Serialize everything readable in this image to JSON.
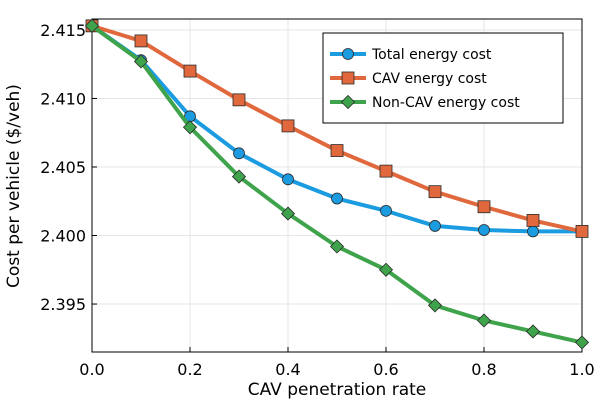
{
  "chart_data": {
    "type": "line",
    "title": "",
    "xlabel": "CAV penetration rate",
    "ylabel": "Cost per vehicle ($/veh)",
    "xlim": [
      0.0,
      1.0
    ],
    "ylim": [
      2.3915,
      2.4158
    ],
    "x_ticks": [
      0.0,
      0.2,
      0.4,
      0.6,
      0.8,
      1.0
    ],
    "x_tick_labels": [
      "0.0",
      "0.2",
      "0.4",
      "0.6",
      "0.8",
      "1.0"
    ],
    "y_ticks": [
      2.395,
      2.4,
      2.405,
      2.41,
      2.415
    ],
    "y_tick_labels": [
      "2.395",
      "2.400",
      "2.405",
      "2.410",
      "2.415"
    ],
    "grid": true,
    "legend_position": "top-right",
    "x": [
      0.0,
      0.1,
      0.2,
      0.3,
      0.4,
      0.5,
      0.6,
      0.7,
      0.8,
      0.9,
      1.0
    ],
    "series": [
      {
        "name": "Total energy cost",
        "color": "#1b9be0",
        "marker": "circle",
        "values": [
          2.4153,
          2.4128,
          2.4087,
          2.406,
          2.4041,
          2.4027,
          2.4018,
          2.4007,
          2.4004,
          2.4003,
          2.4003
        ]
      },
      {
        "name": "CAV energy cost",
        "color": "#e0683c",
        "marker": "square",
        "values": [
          2.4153,
          2.4142,
          2.412,
          2.4099,
          2.408,
          2.4062,
          2.4047,
          2.4032,
          2.4021,
          2.4011,
          2.4003
        ]
      },
      {
        "name": "Non-CAV energy cost",
        "color": "#3ea34b",
        "marker": "diamond",
        "values": [
          2.4153,
          2.4127,
          2.4079,
          2.4043,
          2.4016,
          2.3992,
          2.3975,
          2.3949,
          2.3938,
          2.393,
          2.3922
        ]
      }
    ]
  }
}
